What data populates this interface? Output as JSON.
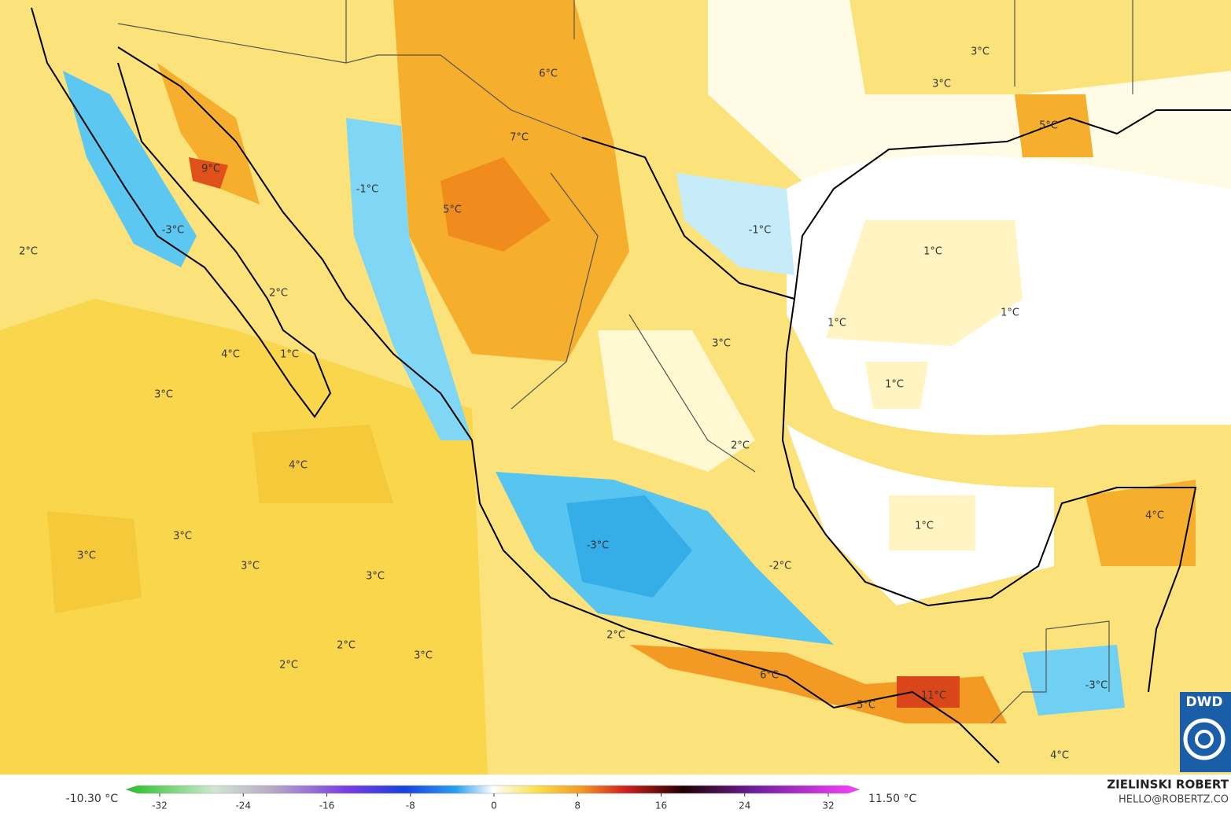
{
  "map_labels": [
    "6°C",
    "3°C",
    "3°C",
    "5°C",
    "7°C",
    "9°C",
    "-1°C",
    "5°C",
    "-3°C",
    "-1°C",
    "2°C",
    "1°C",
    "2°C",
    "1°C",
    "1°C",
    "3°C",
    "4°C",
    "1°C",
    "1°C",
    "3°C",
    "2°C",
    "4°C",
    "4°C",
    "1°C",
    "3°C",
    "-3°C",
    "3°C",
    "-2°C",
    "3°C",
    "3°C",
    "2°C",
    "2°C",
    "3°C",
    "2°C",
    "6°C",
    "-3°C",
    "11°C",
    "5°C",
    "4°C"
  ],
  "colorbar": {
    "min_label": "-10.30 °C",
    "max_label": "11.50 °C",
    "ticks": [
      -32,
      -24,
      -16,
      -8,
      0,
      8,
      16,
      24,
      32
    ]
  },
  "credit": {
    "author": "ZIELINSKI ROBERT",
    "contact": "HELLO@ROBERTZ.CO"
  },
  "logo": "DWD"
}
